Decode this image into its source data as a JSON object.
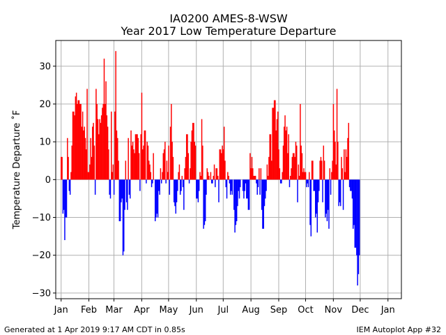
{
  "chart_data": {
    "type": "bar",
    "title": "IA0200 AMES-8-WSW",
    "subtitle": "Year 2017 Low Temperature Departure",
    "xlabel": "",
    "ylabel": "Temperature Departure ˚F",
    "ylim": [
      -31.5,
      36.8
    ],
    "xlim": [
      -5,
      381
    ],
    "x_unit": "day of year (2017)",
    "yticks": [
      -30,
      -20,
      -10,
      0,
      10,
      20,
      30
    ],
    "ytick_labels": [
      "−30",
      "−20",
      "−10",
      "0",
      "10",
      "20",
      "30"
    ],
    "xticks": [
      1,
      32,
      60,
      91,
      121,
      152,
      182,
      213,
      244,
      274,
      305,
      335,
      366
    ],
    "xtick_labels": [
      "Jan",
      "Feb",
      "Mar",
      "Apr",
      "May",
      "Jun",
      "Jul",
      "Aug",
      "Sep",
      "Oct",
      "Nov",
      "Dec",
      "Jan"
    ],
    "grid": true,
    "positive_color": "#ff0000",
    "negative_color": "#0000ff",
    "values": [
      6,
      6,
      -9,
      -8,
      -16,
      -10,
      -10,
      11,
      6,
      -3,
      -4,
      2,
      9,
      18,
      18,
      17,
      22,
      23,
      20,
      21,
      21,
      20,
      20,
      14,
      18,
      13,
      14,
      11,
      8,
      24,
      2,
      2,
      4,
      11,
      6,
      14,
      15,
      9,
      -4,
      24,
      20,
      16,
      12,
      16,
      15,
      17,
      19,
      20,
      32,
      20,
      26,
      17,
      14,
      8,
      -4,
      -5,
      18,
      2,
      4,
      -4,
      18,
      34,
      13,
      11,
      5,
      -11,
      -11,
      -6,
      -5,
      -20,
      -19,
      -8,
      5,
      -6,
      -8,
      11,
      -4,
      -5,
      13,
      9,
      10,
      8,
      7,
      12,
      12,
      12,
      11,
      7,
      -3,
      12,
      23,
      8,
      9,
      13,
      13,
      -1,
      10,
      9,
      5,
      4,
      2,
      -2,
      -1,
      7,
      0,
      -11,
      -10,
      -9,
      -10,
      -3,
      -4,
      3,
      -1,
      2,
      7,
      8,
      10,
      -1,
      5,
      2,
      9,
      -4,
      14,
      20,
      10,
      6,
      -6,
      -7,
      -9,
      -6,
      -3,
      2,
      4,
      -4,
      -3,
      1,
      -2,
      -8,
      3,
      6,
      12,
      12,
      7,
      -1,
      3,
      10,
      13,
      15,
      15,
      10,
      9,
      -5,
      -5,
      -6,
      -3,
      2,
      1,
      16,
      9,
      -13,
      -12,
      -11,
      -4,
      3,
      2,
      1,
      0,
      2,
      -1,
      -1,
      1,
      4,
      -2,
      3,
      3,
      1,
      -6,
      8,
      8,
      7,
      9,
      8,
      14,
      5,
      -2,
      -5,
      2,
      1,
      -1,
      -4,
      -3,
      -4,
      0,
      -8,
      -14,
      -12,
      -11,
      -7,
      -3,
      -5,
      -2,
      0,
      0,
      -3,
      -5,
      -3,
      -1,
      -5,
      -5,
      -8,
      -8,
      7,
      3,
      6,
      3,
      1,
      1,
      1,
      -1,
      -4,
      -2,
      3,
      -4,
      3,
      -8,
      -13,
      -13,
      -7,
      -5,
      -3,
      4,
      1,
      6,
      12,
      12,
      5,
      19,
      19,
      21,
      21,
      13,
      16,
      18,
      8,
      3,
      -1,
      -1,
      2,
      9,
      14,
      17,
      13,
      14,
      7,
      12,
      -2,
      1,
      3,
      6,
      7,
      7,
      6,
      10,
      9,
      -6,
      4,
      1,
      20,
      9,
      7,
      2,
      3,
      2,
      2,
      -2,
      -1,
      -2,
      2,
      -12,
      -15,
      5,
      5,
      -3,
      -3,
      -10,
      -9,
      -14,
      -6,
      -3,
      5,
      6,
      5,
      -6,
      9,
      5,
      -10,
      -9,
      -11,
      -8,
      -13,
      3,
      -4,
      2,
      5,
      20,
      13,
      10,
      4,
      24,
      10,
      -7,
      -6,
      -7,
      6,
      3,
      -8,
      8,
      2,
      8,
      6,
      11,
      15,
      -2,
      -3,
      -3,
      -5,
      -13,
      -12,
      -18,
      -18,
      -20,
      -28,
      -25,
      -20
    ]
  },
  "footer": {
    "left": "Generated at 1 Apr 2019 9:17 AM CDT in 0.85s",
    "right": "IEM Autoplot App #32"
  }
}
